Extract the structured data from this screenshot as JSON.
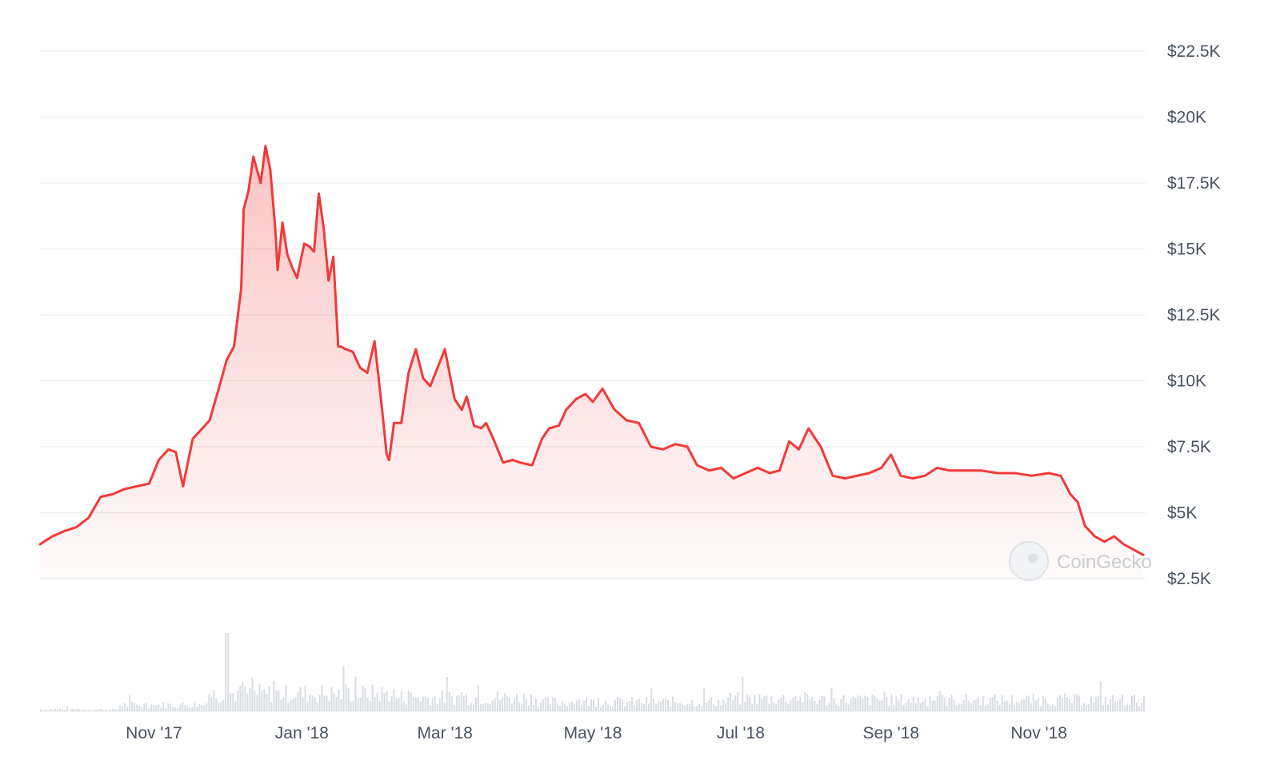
{
  "chart_data": {
    "type": "area",
    "title": "",
    "xlabel": "",
    "ylabel": "",
    "ylim": [
      2500,
      22500
    ],
    "y_ticks": [
      2500,
      5000,
      7500,
      10000,
      12500,
      15000,
      17500,
      20000,
      22500
    ],
    "y_tick_labels": [
      "$2.5K",
      "$5K",
      "$7.5K",
      "$10K",
      "$12.5K",
      "$15K",
      "$17.5K",
      "$20K",
      "$22.5K"
    ],
    "x_range": [
      "2017-09-15",
      "2018-12-15"
    ],
    "x_ticks": [
      "2017-11-01",
      "2018-01-01",
      "2018-03-01",
      "2018-05-01",
      "2018-07-01",
      "2018-09-01",
      "2018-11-01"
    ],
    "x_tick_labels": [
      "Nov '17",
      "Jan '18",
      "Mar '18",
      "May '18",
      "Jul '18",
      "Sep '18",
      "Nov '18"
    ],
    "grid": true,
    "watermark": "CoinGecko",
    "line_color": "#f03a3a",
    "fill_color": "#f03a3a",
    "volume_color": "#d9dde2",
    "series": [
      {
        "name": "",
        "x": [
          "2017-09-15",
          "2017-09-20",
          "2017-09-25",
          "2017-09-30",
          "2017-10-05",
          "2017-10-10",
          "2017-10-15",
          "2017-10-20",
          "2017-10-25",
          "2017-10-30",
          "2017-11-03",
          "2017-11-07",
          "2017-11-10",
          "2017-11-13",
          "2017-11-17",
          "2017-11-20",
          "2017-11-24",
          "2017-11-28",
          "2017-12-01",
          "2017-12-04",
          "2017-12-07",
          "2017-12-08",
          "2017-12-10",
          "2017-12-12",
          "2017-12-15",
          "2017-12-17",
          "2017-12-19",
          "2017-12-21",
          "2017-12-22",
          "2017-12-24",
          "2017-12-26",
          "2017-12-28",
          "2017-12-30",
          "2018-01-02",
          "2018-01-04",
          "2018-01-06",
          "2018-01-08",
          "2018-01-10",
          "2018-01-12",
          "2018-01-14",
          "2018-01-16",
          "2018-01-17",
          "2018-01-19",
          "2018-01-22",
          "2018-01-25",
          "2018-01-28",
          "2018-01-31",
          "2018-02-03",
          "2018-02-05",
          "2018-02-06",
          "2018-02-08",
          "2018-02-11",
          "2018-02-14",
          "2018-02-17",
          "2018-02-20",
          "2018-02-23",
          "2018-02-26",
          "2018-03-01",
          "2018-03-05",
          "2018-03-08",
          "2018-03-10",
          "2018-03-13",
          "2018-03-16",
          "2018-03-18",
          "2018-03-21",
          "2018-03-25",
          "2018-03-29",
          "2018-04-01",
          "2018-04-06",
          "2018-04-10",
          "2018-04-13",
          "2018-04-17",
          "2018-04-20",
          "2018-04-24",
          "2018-04-28",
          "2018-05-01",
          "2018-05-05",
          "2018-05-10",
          "2018-05-15",
          "2018-05-20",
          "2018-05-25",
          "2018-05-30",
          "2018-06-04",
          "2018-06-09",
          "2018-06-13",
          "2018-06-18",
          "2018-06-23",
          "2018-06-28",
          "2018-07-03",
          "2018-07-08",
          "2018-07-13",
          "2018-07-17",
          "2018-07-21",
          "2018-07-25",
          "2018-07-29",
          "2018-08-03",
          "2018-08-08",
          "2018-08-13",
          "2018-08-18",
          "2018-08-23",
          "2018-08-28",
          "2018-09-01",
          "2018-09-05",
          "2018-09-10",
          "2018-09-15",
          "2018-09-20",
          "2018-09-25",
          "2018-10-01",
          "2018-10-08",
          "2018-10-15",
          "2018-10-22",
          "2018-10-29",
          "2018-11-05",
          "2018-11-10",
          "2018-11-14",
          "2018-11-17",
          "2018-11-20",
          "2018-11-24",
          "2018-11-28",
          "2018-12-02",
          "2018-12-06",
          "2018-12-10",
          "2018-12-14"
        ],
        "values": [
          3800,
          4100,
          4300,
          4450,
          4800,
          5600,
          5700,
          5900,
          6000,
          6100,
          7000,
          7400,
          7300,
          6000,
          7800,
          8100,
          8500,
          9800,
          10800,
          11300,
          13500,
          16500,
          17200,
          18500,
          17500,
          18900,
          18000,
          15800,
          14200,
          16000,
          14800,
          14300,
          13900,
          15200,
          15100,
          14900,
          17100,
          15800,
          13800,
          14700,
          11300,
          11300,
          11200,
          11100,
          10500,
          10300,
          11500,
          9000,
          7200,
          7000,
          8400,
          8400,
          10300,
          11200,
          10100,
          9800,
          10500,
          11200,
          9300,
          8900,
          9400,
          8300,
          8200,
          8400,
          7800,
          6900,
          7000,
          6900,
          6800,
          7800,
          8200,
          8300,
          8900,
          9300,
          9500,
          9200,
          9700,
          8900,
          8500,
          8400,
          7500,
          7400,
          7600,
          7500,
          6800,
          6600,
          6700,
          6300,
          6500,
          6700,
          6500,
          6600,
          7700,
          7400,
          8200,
          7500,
          6400,
          6300,
          6400,
          6500,
          6700,
          7200,
          6400,
          6300,
          6400,
          6700,
          6600,
          6600,
          6600,
          6500,
          6500,
          6400,
          6500,
          6400,
          5700,
          5400,
          4500,
          4100,
          3900,
          4100,
          3800,
          3600,
          3400
        ]
      }
    ]
  }
}
